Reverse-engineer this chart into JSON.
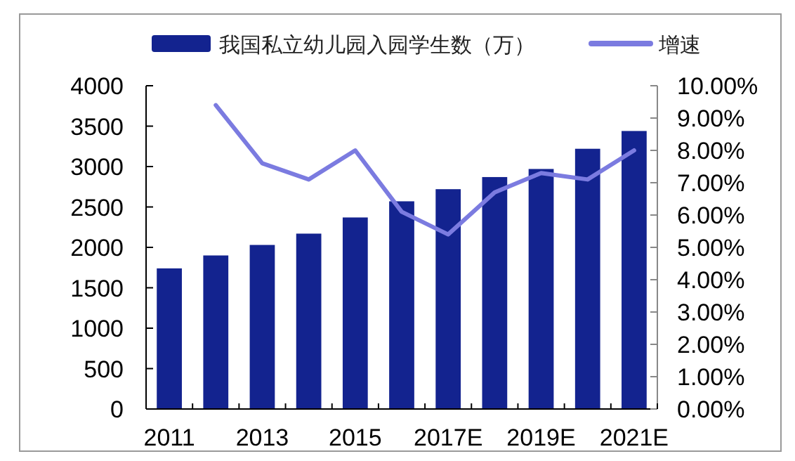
{
  "chart_data": {
    "type": "bar",
    "categories": [
      "2011",
      null,
      "2013",
      null,
      "2015",
      null,
      "2017E",
      null,
      "2019E",
      null,
      "2021E"
    ],
    "series": [
      {
        "name": "我国私立幼儿园入园学生数（万）",
        "color": "#13238f",
        "values": [
          1740,
          1900,
          2030,
          2170,
          2370,
          2570,
          2720,
          2870,
          2970,
          3220,
          3440
        ]
      },
      {
        "name": "增速",
        "type": "line",
        "axis": "y2",
        "color": "#7b7be0",
        "values": [
          null,
          9.4,
          7.6,
          7.1,
          8.0,
          6.1,
          5.4,
          6.7,
          7.3,
          7.1,
          8.0
        ]
      }
    ],
    "ylim": [
      0,
      4000
    ],
    "yticks": [
      0,
      500,
      1000,
      1500,
      2000,
      2500,
      3000,
      3500,
      4000
    ],
    "y2lim": [
      0,
      10
    ],
    "y2ticks": [
      {
        "value": 0,
        "label": "0.00%"
      },
      {
        "value": 1,
        "label": "1.00%"
      },
      {
        "value": 2,
        "label": "2.00%"
      },
      {
        "value": 3,
        "label": "3.00%"
      },
      {
        "value": 4,
        "label": "4.00%"
      },
      {
        "value": 5,
        "label": "5.00%"
      },
      {
        "value": 6,
        "label": "6.00%"
      },
      {
        "value": 7,
        "label": "7.00%"
      },
      {
        "value": 8,
        "label": "8.00%"
      },
      {
        "value": 9,
        "label": "9.00%"
      },
      {
        "value": 10,
        "label": "10.00%"
      }
    ],
    "legend": "top",
    "grid": false,
    "marker": "none"
  }
}
